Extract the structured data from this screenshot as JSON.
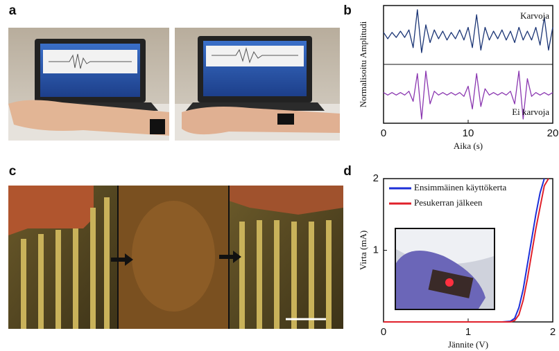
{
  "panels": [
    "a",
    "b",
    "c",
    "d"
  ],
  "chart_data": [
    {
      "type": "line",
      "x_label": "Aika (s)",
      "y_label": "Normalisoitu Amplitudi",
      "x": [
        0,
        0.5,
        1,
        1.5,
        2,
        2.5,
        3,
        3.5,
        4,
        4.5,
        5,
        5.5,
        6,
        6.5,
        7,
        7.5,
        8,
        8.5,
        9,
        9.5,
        10,
        10.5,
        11,
        11.5,
        12,
        12.5,
        13,
        13.5,
        14,
        14.5,
        15,
        15.5,
        16,
        16.5,
        17,
        17.5,
        18,
        18.5,
        19,
        19.5,
        20
      ],
      "xlim": [
        0,
        20
      ],
      "xticks": [
        0,
        10,
        20
      ],
      "ylim": [
        -1,
        1
      ],
      "series": [
        {
          "name": "Karvoja",
          "color": "#1b3575",
          "values": [
            0.1,
            -0.15,
            0.1,
            -0.1,
            0.15,
            -0.1,
            0.2,
            -0.5,
            1.0,
            -0.7,
            0.4,
            -0.3,
            0.2,
            -0.15,
            0.15,
            -0.2,
            0.1,
            -0.15,
            0.2,
            -0.2,
            0.3,
            -0.5,
            0.8,
            -0.6,
            0.3,
            -0.2,
            0.15,
            -0.15,
            0.2,
            -0.2,
            0.15,
            -0.3,
            0.3,
            -0.2,
            0.15,
            -0.2,
            0.3,
            -0.4,
            0.7,
            -0.6,
            0.3
          ]
        },
        {
          "name": "Ei karvoja",
          "color": "#8a36b0",
          "values": [
            0.05,
            -0.05,
            0.05,
            -0.05,
            0.05,
            -0.05,
            0.1,
            -0.3,
            0.8,
            -1.0,
            0.9,
            -0.4,
            0.1,
            -0.05,
            0.05,
            -0.05,
            0.05,
            -0.05,
            0.05,
            -0.1,
            0.3,
            -0.6,
            0.8,
            -0.5,
            0.2,
            -0.05,
            0.05,
            -0.05,
            0.05,
            -0.05,
            0.1,
            -0.4,
            0.9,
            -1.0,
            0.6,
            -0.1,
            0.05,
            -0.05,
            0.05,
            -0.05,
            0.05
          ]
        }
      ]
    },
    {
      "type": "line",
      "x_label": "Jännite (V)",
      "y_label": "Virta (mA)",
      "x": [
        0,
        0.5,
        1,
        1.4,
        1.5,
        1.55,
        1.6,
        1.65,
        1.7,
        1.75,
        1.8,
        1.85,
        1.9,
        1.95
      ],
      "xlim": [
        0,
        2
      ],
      "xticks": [
        0,
        1,
        2
      ],
      "ylim": [
        0,
        2
      ],
      "yticks": [
        1,
        2
      ],
      "legend": "upper-left",
      "series": [
        {
          "name": "Ensimmäinen käyttökerta",
          "color": "#1c2fd8",
          "values": [
            0,
            0,
            0,
            0,
            0.01,
            0.05,
            0.2,
            0.45,
            0.8,
            1.15,
            1.5,
            1.8,
            2.0,
            null
          ]
        },
        {
          "name": "Pesukerran jälkeen",
          "color": "#e0202a",
          "values": [
            0,
            0,
            0,
            0,
            0,
            0.02,
            0.1,
            0.3,
            0.6,
            0.95,
            1.3,
            1.6,
            1.9,
            2.0
          ]
        }
      ]
    }
  ]
}
